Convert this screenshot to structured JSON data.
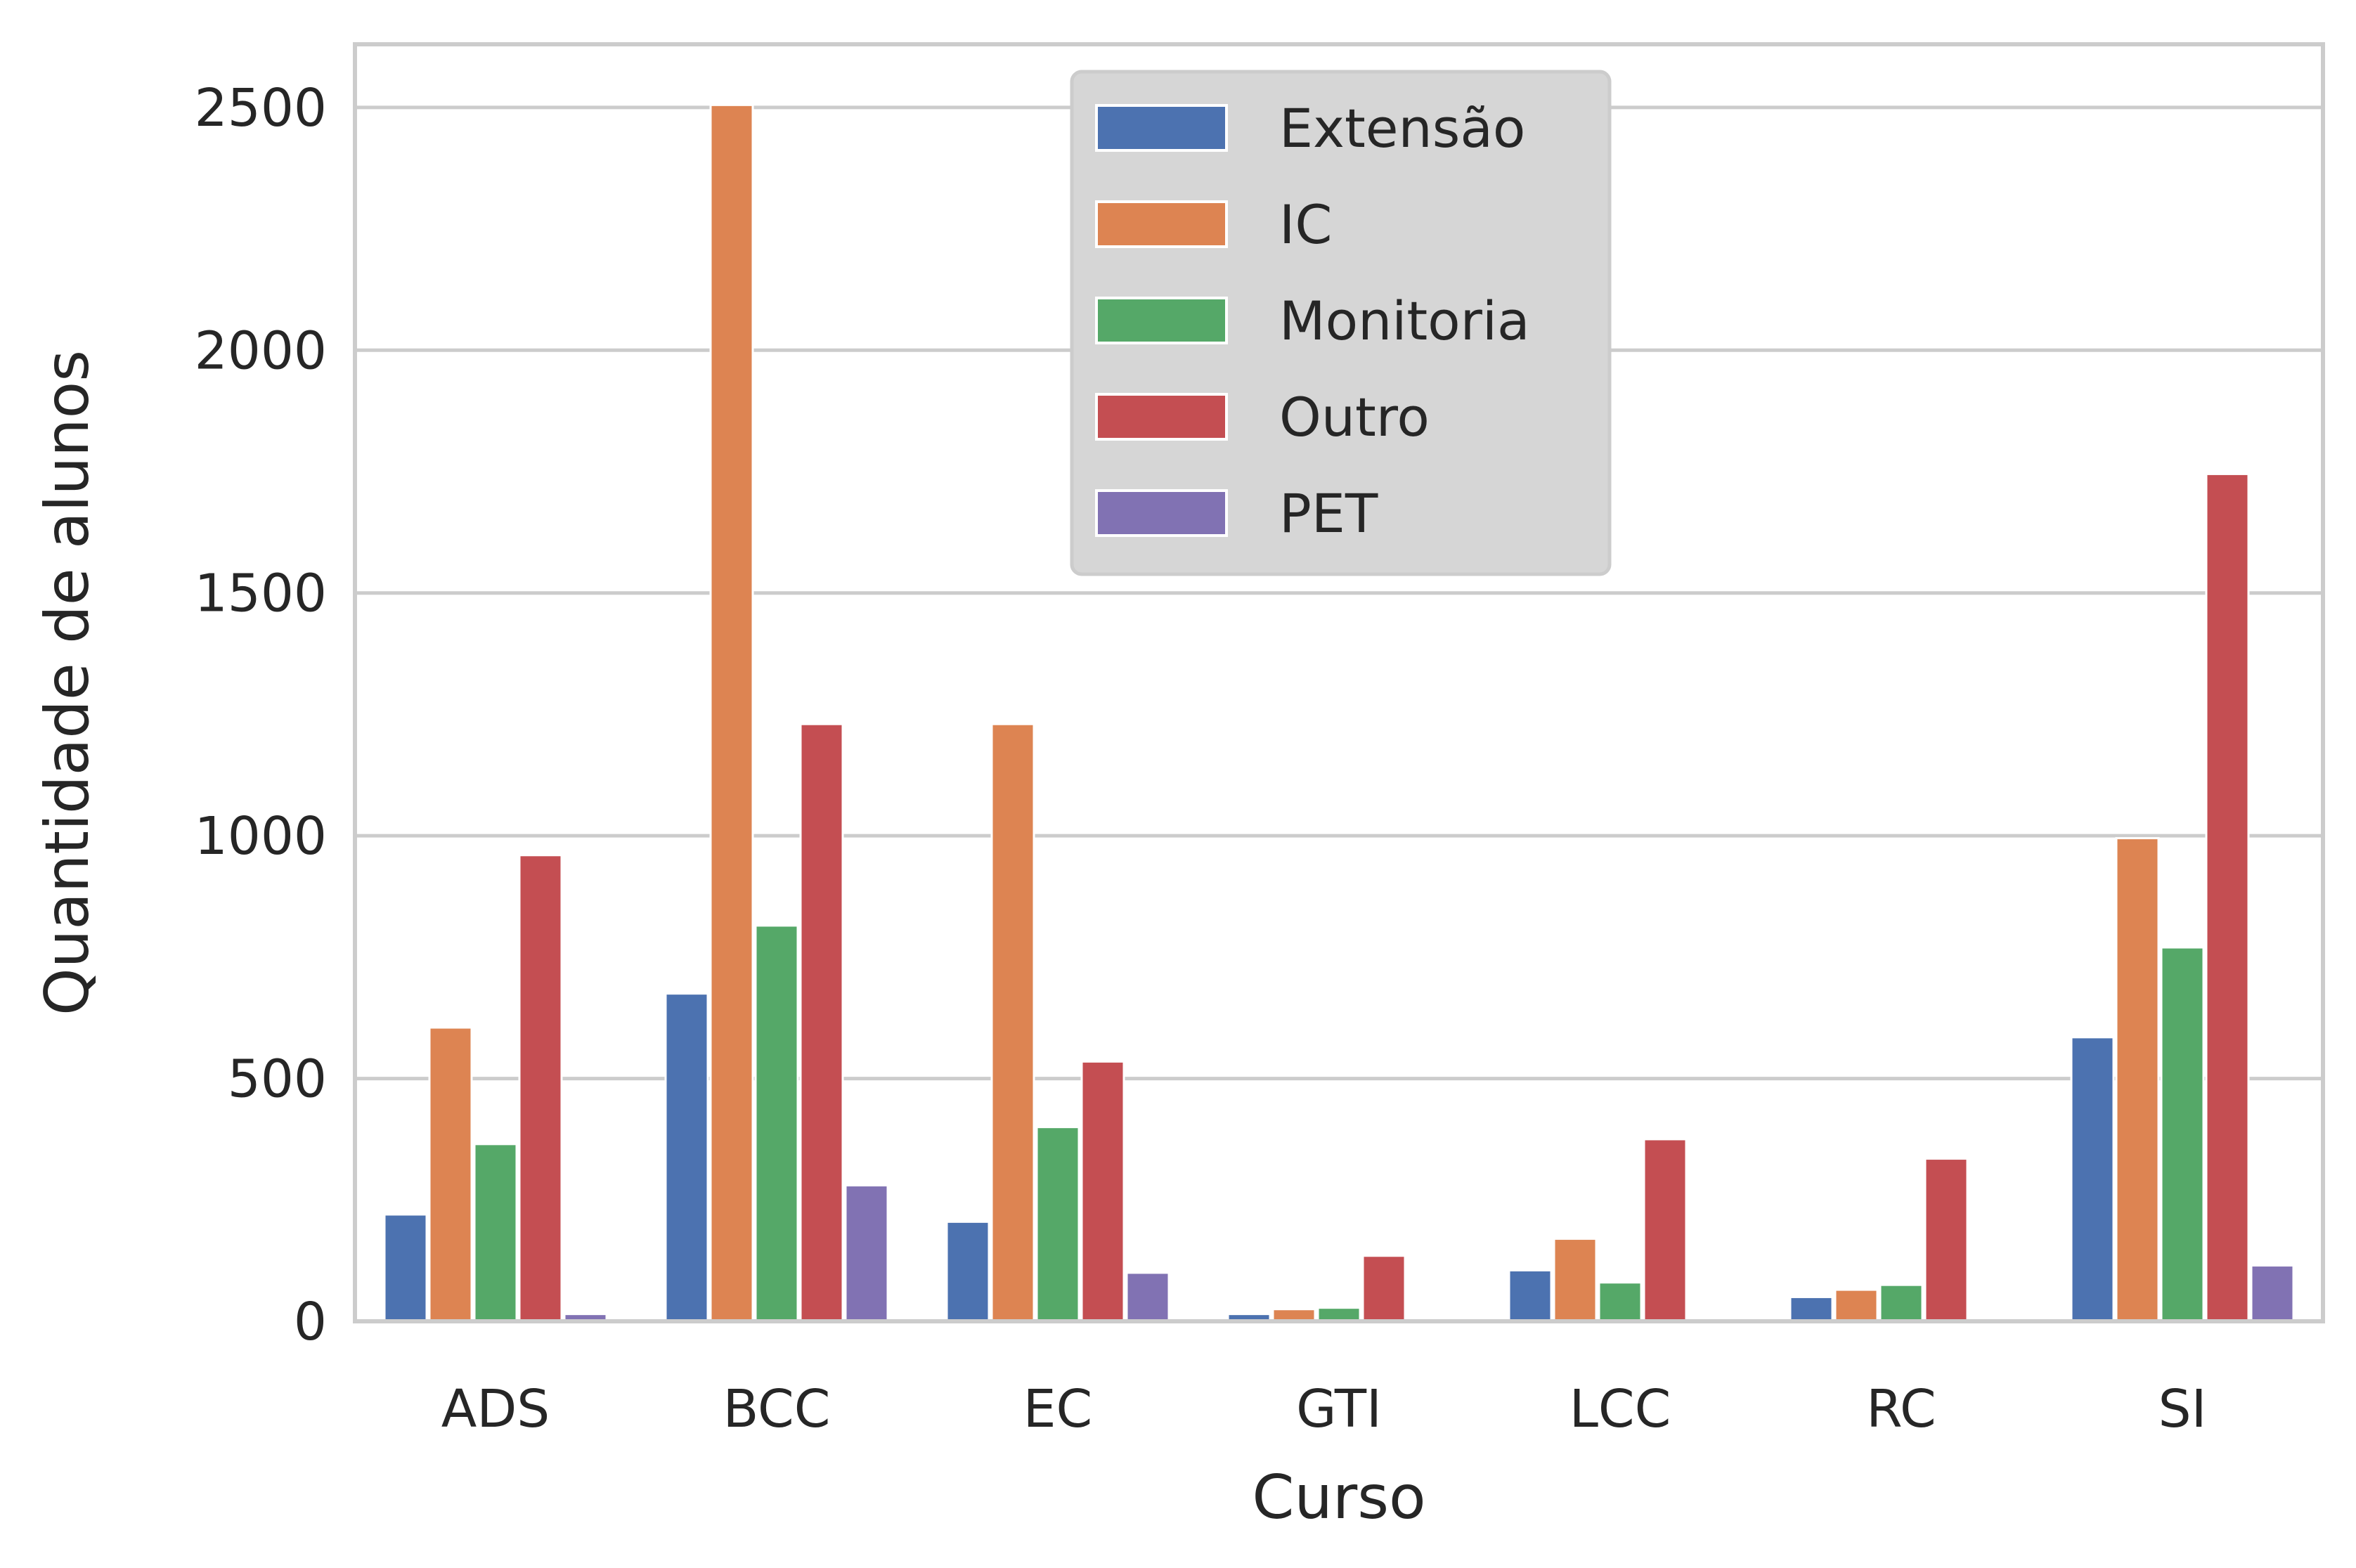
{
  "chart_data": {
    "type": "bar",
    "title": "",
    "xlabel": "Curso",
    "ylabel": "Quantidade de alunos",
    "categories": [
      "ADS",
      "BCC",
      "EC",
      "GTI",
      "LCC",
      "RC",
      "SI"
    ],
    "series": [
      {
        "name": "Extensão",
        "color": "#4c72b0",
        "values": [
          220,
          675,
          205,
          15,
          105,
          50,
          585
        ]
      },
      {
        "name": "IC",
        "color": "#dd8452",
        "values": [
          605,
          2505,
          1230,
          25,
          170,
          65,
          995
        ]
      },
      {
        "name": "Monitoria",
        "color": "#55a868",
        "values": [
          365,
          815,
          400,
          28,
          80,
          75,
          770
        ]
      },
      {
        "name": "Outro",
        "color": "#c44e52",
        "values": [
          960,
          1230,
          535,
          135,
          375,
          335,
          1745
        ]
      },
      {
        "name": "PET",
        "color": "#8172b3",
        "values": [
          15,
          280,
          100,
          0,
          0,
          0,
          115
        ]
      }
    ],
    "yticks": [
      0,
      500,
      1000,
      1500,
      2000,
      2500
    ],
    "ylim": [
      0,
      2630
    ],
    "grid": true,
    "legend": "top-center"
  }
}
